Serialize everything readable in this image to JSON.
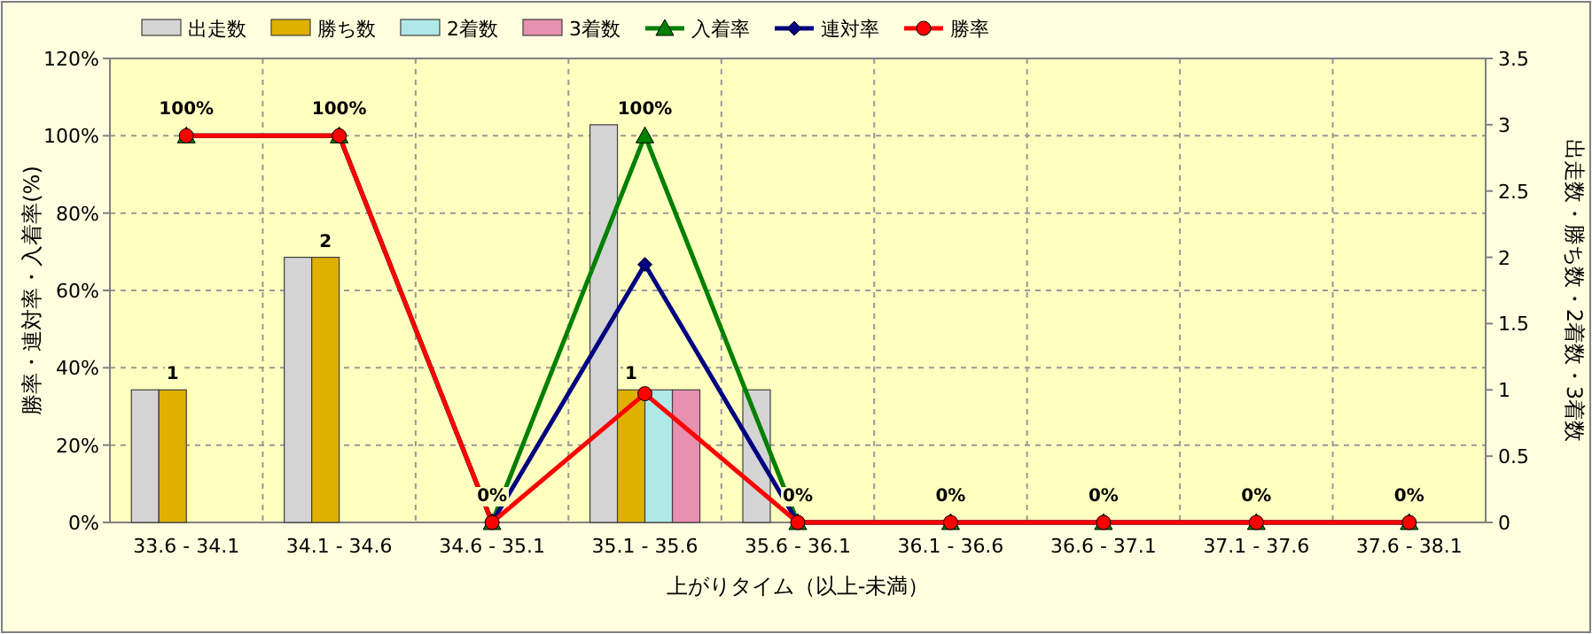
{
  "chart_data": {
    "type": "bar",
    "xlabel": "上がりタイム（以上-未満）",
    "ylabel": "勝率・連対率・入着率(%)",
    "y2label": "出走数・勝ち数・2着数・3着数",
    "categories": [
      "33.6 - 34.1",
      "34.1 - 34.6",
      "34.6 - 35.1",
      "35.1 - 35.6",
      "35.6 - 36.1",
      "36.1 - 36.6",
      "36.6 - 37.1",
      "37.1 - 37.6",
      "37.6 - 38.1"
    ],
    "series": [
      {
        "name": "出走数",
        "axis": "y2",
        "color": "#d4d4d4",
        "values": [
          1,
          2,
          0,
          3,
          1,
          0,
          0,
          0,
          0
        ]
      },
      {
        "name": "勝ち数",
        "axis": "y2",
        "color": "#e0b000",
        "values": [
          1,
          2,
          0,
          1,
          0,
          0,
          0,
          0,
          0
        ],
        "value_labels": [
          "1",
          "2",
          null,
          "1",
          null,
          null,
          null,
          null,
          null
        ]
      },
      {
        "name": "2着数",
        "axis": "y2",
        "color": "#b0e8e8",
        "values": [
          0,
          0,
          0,
          1,
          0,
          0,
          0,
          0,
          0
        ]
      },
      {
        "name": "3着数",
        "axis": "y2",
        "color": "#e890b0",
        "values": [
          0,
          0,
          0,
          1,
          0,
          0,
          0,
          0,
          0
        ]
      },
      {
        "name": "入着率",
        "type": "line",
        "marker": "triangle",
        "color": "#008000",
        "values": [
          100,
          100,
          0,
          100,
          0,
          0,
          0,
          0,
          0
        ],
        "value_labels": [
          "100%",
          "100%",
          "0%",
          "100%",
          "0%",
          "0%",
          "0%",
          "0%",
          "0%"
        ]
      },
      {
        "name": "連対率",
        "type": "line",
        "marker": "diamond",
        "color": "#000080",
        "values": [
          100,
          100,
          0,
          66.7,
          0,
          0,
          0,
          0,
          0
        ]
      },
      {
        "name": "勝率",
        "type": "line",
        "marker": "circle",
        "color": "#ff0000",
        "values": [
          100,
          100,
          0,
          33.3,
          0,
          0,
          0,
          0,
          0
        ]
      }
    ],
    "ylim": [
      0,
      120
    ],
    "yticks": [
      {
        "value": 0,
        "label": "0%"
      },
      {
        "value": 20,
        "label": "20%"
      },
      {
        "value": 40,
        "label": "40%"
      },
      {
        "value": 60,
        "label": "60%"
      },
      {
        "value": 80,
        "label": "80%"
      },
      {
        "value": 100,
        "label": "100%"
      },
      {
        "value": 120,
        "label": "120%"
      }
    ],
    "y2lim": [
      0,
      3.5
    ],
    "y2ticks": [
      0,
      0.5,
      1,
      1.5,
      2,
      2.5,
      3,
      3.5
    ],
    "grid": true,
    "legend": "top"
  }
}
